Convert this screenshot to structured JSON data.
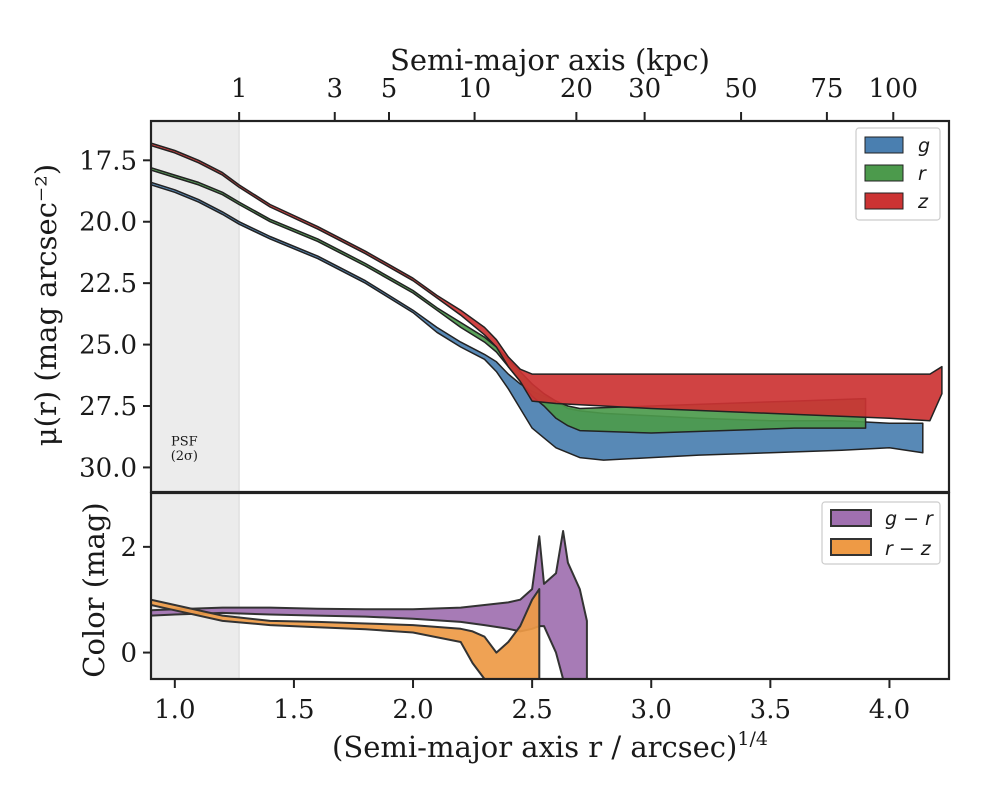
{
  "chart_data": [
    {
      "panel": "surface-brightness",
      "type": "area",
      "ylabel": "μ(r) (mag arcsec⁻²)",
      "top_xlabel": "Semi-major axis (kpc)",
      "top_ticks": [
        "1",
        "3",
        "5",
        "10",
        "20",
        "30",
        "50",
        "75",
        "100"
      ],
      "top_tick_kpc": [
        1,
        3,
        5,
        10,
        20,
        30,
        50,
        75,
        100
      ],
      "xlim": [
        0.9,
        4.25
      ],
      "ylim": [
        31.0,
        15.9
      ],
      "y_inverted": true,
      "yticks": [
        "17.5",
        "20.0",
        "22.5",
        "25.0",
        "27.5",
        "30.0"
      ],
      "ytick_values": [
        17.5,
        20.0,
        22.5,
        25.0,
        27.5,
        30.0
      ],
      "psf_region": {
        "x_max": 1.27,
        "label_line1": "PSF",
        "label_line2": "(2σ)"
      },
      "legend": {
        "position": "upper right",
        "entries": [
          "g",
          "r",
          "z"
        ]
      },
      "colors": {
        "g": "#4a7fb0",
        "r": "#4c9a4c",
        "z": "#cc3333",
        "psf": "#ececec",
        "edge": "#222222"
      },
      "series": [
        {
          "name": "g",
          "x": [
            0.9,
            1.0,
            1.1,
            1.2,
            1.27,
            1.4,
            1.6,
            1.8,
            2.0,
            2.1,
            2.2,
            2.3,
            2.35,
            2.4,
            2.45,
            2.5,
            2.55,
            2.6,
            2.65,
            2.7,
            2.8,
            3.0,
            3.2,
            3.5,
            3.8,
            4.0,
            4.14
          ],
          "y_upper": [
            18.4,
            18.7,
            19.1,
            19.6,
            20.0,
            20.6,
            21.4,
            22.4,
            23.6,
            24.3,
            24.9,
            25.4,
            25.7,
            26.2,
            26.6,
            26.9,
            27.1,
            27.3,
            27.6,
            27.7,
            27.8,
            27.9,
            28.0,
            28.1,
            28.1,
            28.2,
            28.2
          ],
          "y_lower": [
            18.5,
            18.8,
            19.2,
            19.7,
            20.1,
            20.7,
            21.5,
            22.5,
            23.7,
            24.5,
            25.1,
            25.6,
            26.1,
            26.8,
            27.6,
            28.4,
            28.8,
            29.2,
            29.4,
            29.6,
            29.7,
            29.6,
            29.5,
            29.4,
            29.3,
            29.2,
            29.4
          ]
        },
        {
          "name": "r",
          "x": [
            0.9,
            1.0,
            1.1,
            1.2,
            1.27,
            1.4,
            1.6,
            1.8,
            2.0,
            2.1,
            2.2,
            2.3,
            2.35,
            2.4,
            2.45,
            2.5,
            2.55,
            2.6,
            2.65,
            2.7,
            3.0,
            3.3,
            3.6,
            3.9
          ],
          "y_upper": [
            17.8,
            18.1,
            18.4,
            18.8,
            19.2,
            19.9,
            20.7,
            21.7,
            22.8,
            23.5,
            24.1,
            24.7,
            25.1,
            25.6,
            26.1,
            26.6,
            27.0,
            27.3,
            27.5,
            27.6,
            27.5,
            27.4,
            27.3,
            27.2
          ],
          "y_lower": [
            17.9,
            18.2,
            18.5,
            18.9,
            19.3,
            20.0,
            20.8,
            21.8,
            22.9,
            23.6,
            24.3,
            24.9,
            25.3,
            25.9,
            26.5,
            27.1,
            27.5,
            28.0,
            28.3,
            28.5,
            28.6,
            28.5,
            28.4,
            28.4
          ]
        },
        {
          "name": "z",
          "x": [
            0.9,
            1.0,
            1.1,
            1.2,
            1.27,
            1.4,
            1.6,
            1.8,
            2.0,
            2.1,
            2.2,
            2.3,
            2.35,
            2.4,
            2.45,
            2.5,
            2.6,
            2.8,
            3.0,
            3.5,
            4.0,
            4.17,
            4.22
          ],
          "y_upper": [
            16.8,
            17.1,
            17.5,
            18.0,
            18.5,
            19.3,
            20.2,
            21.2,
            22.3,
            23.0,
            23.6,
            24.3,
            24.8,
            25.5,
            26.0,
            26.2,
            26.2,
            26.2,
            26.2,
            26.2,
            26.2,
            26.2,
            25.9
          ],
          "y_lower": [
            16.9,
            17.2,
            17.6,
            18.1,
            18.6,
            19.4,
            20.3,
            21.3,
            22.4,
            23.1,
            23.8,
            24.6,
            25.1,
            25.9,
            26.5,
            27.3,
            27.4,
            27.5,
            27.6,
            27.8,
            28.0,
            28.1,
            27.0
          ]
        }
      ]
    },
    {
      "panel": "color",
      "type": "area",
      "xlabel": "(Semi-major axis r / arcsec)",
      "xlabel_exponent": "1/4",
      "ylabel": "Color (mag)",
      "xlim": [
        0.9,
        4.25
      ],
      "ylim": [
        -0.5,
        3.0
      ],
      "xticks": [
        "1.0",
        "1.5",
        "2.0",
        "2.5",
        "3.0",
        "3.5",
        "4.0"
      ],
      "xtick_values": [
        1.0,
        1.5,
        2.0,
        2.5,
        3.0,
        3.5,
        4.0
      ],
      "yticks": [
        "0",
        "2"
      ],
      "ytick_values": [
        0,
        2
      ],
      "legend": {
        "position": "upper right",
        "entries": [
          "g − r",
          "r − z"
        ]
      },
      "colors": {
        "g-r": "#a070b0",
        "r-z": "#ee9a45",
        "edge": "#333333"
      },
      "series": [
        {
          "name": "g − r",
          "x": [
            0.9,
            1.0,
            1.2,
            1.4,
            1.6,
            1.8,
            2.0,
            2.2,
            2.3,
            2.4,
            2.45,
            2.5,
            2.53,
            2.55,
            2.6,
            2.63,
            2.65,
            2.7,
            2.73
          ],
          "y_upper": [
            0.8,
            0.82,
            0.85,
            0.85,
            0.83,
            0.82,
            0.82,
            0.85,
            0.9,
            0.95,
            1.0,
            1.2,
            2.2,
            1.3,
            1.5,
            2.3,
            1.7,
            1.2,
            0.6
          ],
          "y_lower": [
            0.7,
            0.72,
            0.75,
            0.72,
            0.7,
            0.68,
            0.64,
            0.58,
            0.52,
            0.45,
            0.4,
            0.45,
            0.5,
            0.5,
            0.0,
            -0.5,
            -0.5,
            -0.5,
            -0.5
          ]
        },
        {
          "name": "r − z",
          "x": [
            0.9,
            1.0,
            1.2,
            1.4,
            1.6,
            1.8,
            2.0,
            2.2,
            2.25,
            2.3,
            2.35,
            2.4,
            2.45,
            2.5,
            2.53
          ],
          "y_upper": [
            1.0,
            0.9,
            0.7,
            0.6,
            0.58,
            0.55,
            0.52,
            0.45,
            0.4,
            0.3,
            0.0,
            0.2,
            0.5,
            1.0,
            1.2
          ],
          "y_lower": [
            0.9,
            0.8,
            0.6,
            0.52,
            0.48,
            0.44,
            0.38,
            0.2,
            -0.2,
            -0.5,
            -0.5,
            -0.5,
            -0.5,
            -0.5,
            -0.5
          ]
        }
      ]
    }
  ]
}
